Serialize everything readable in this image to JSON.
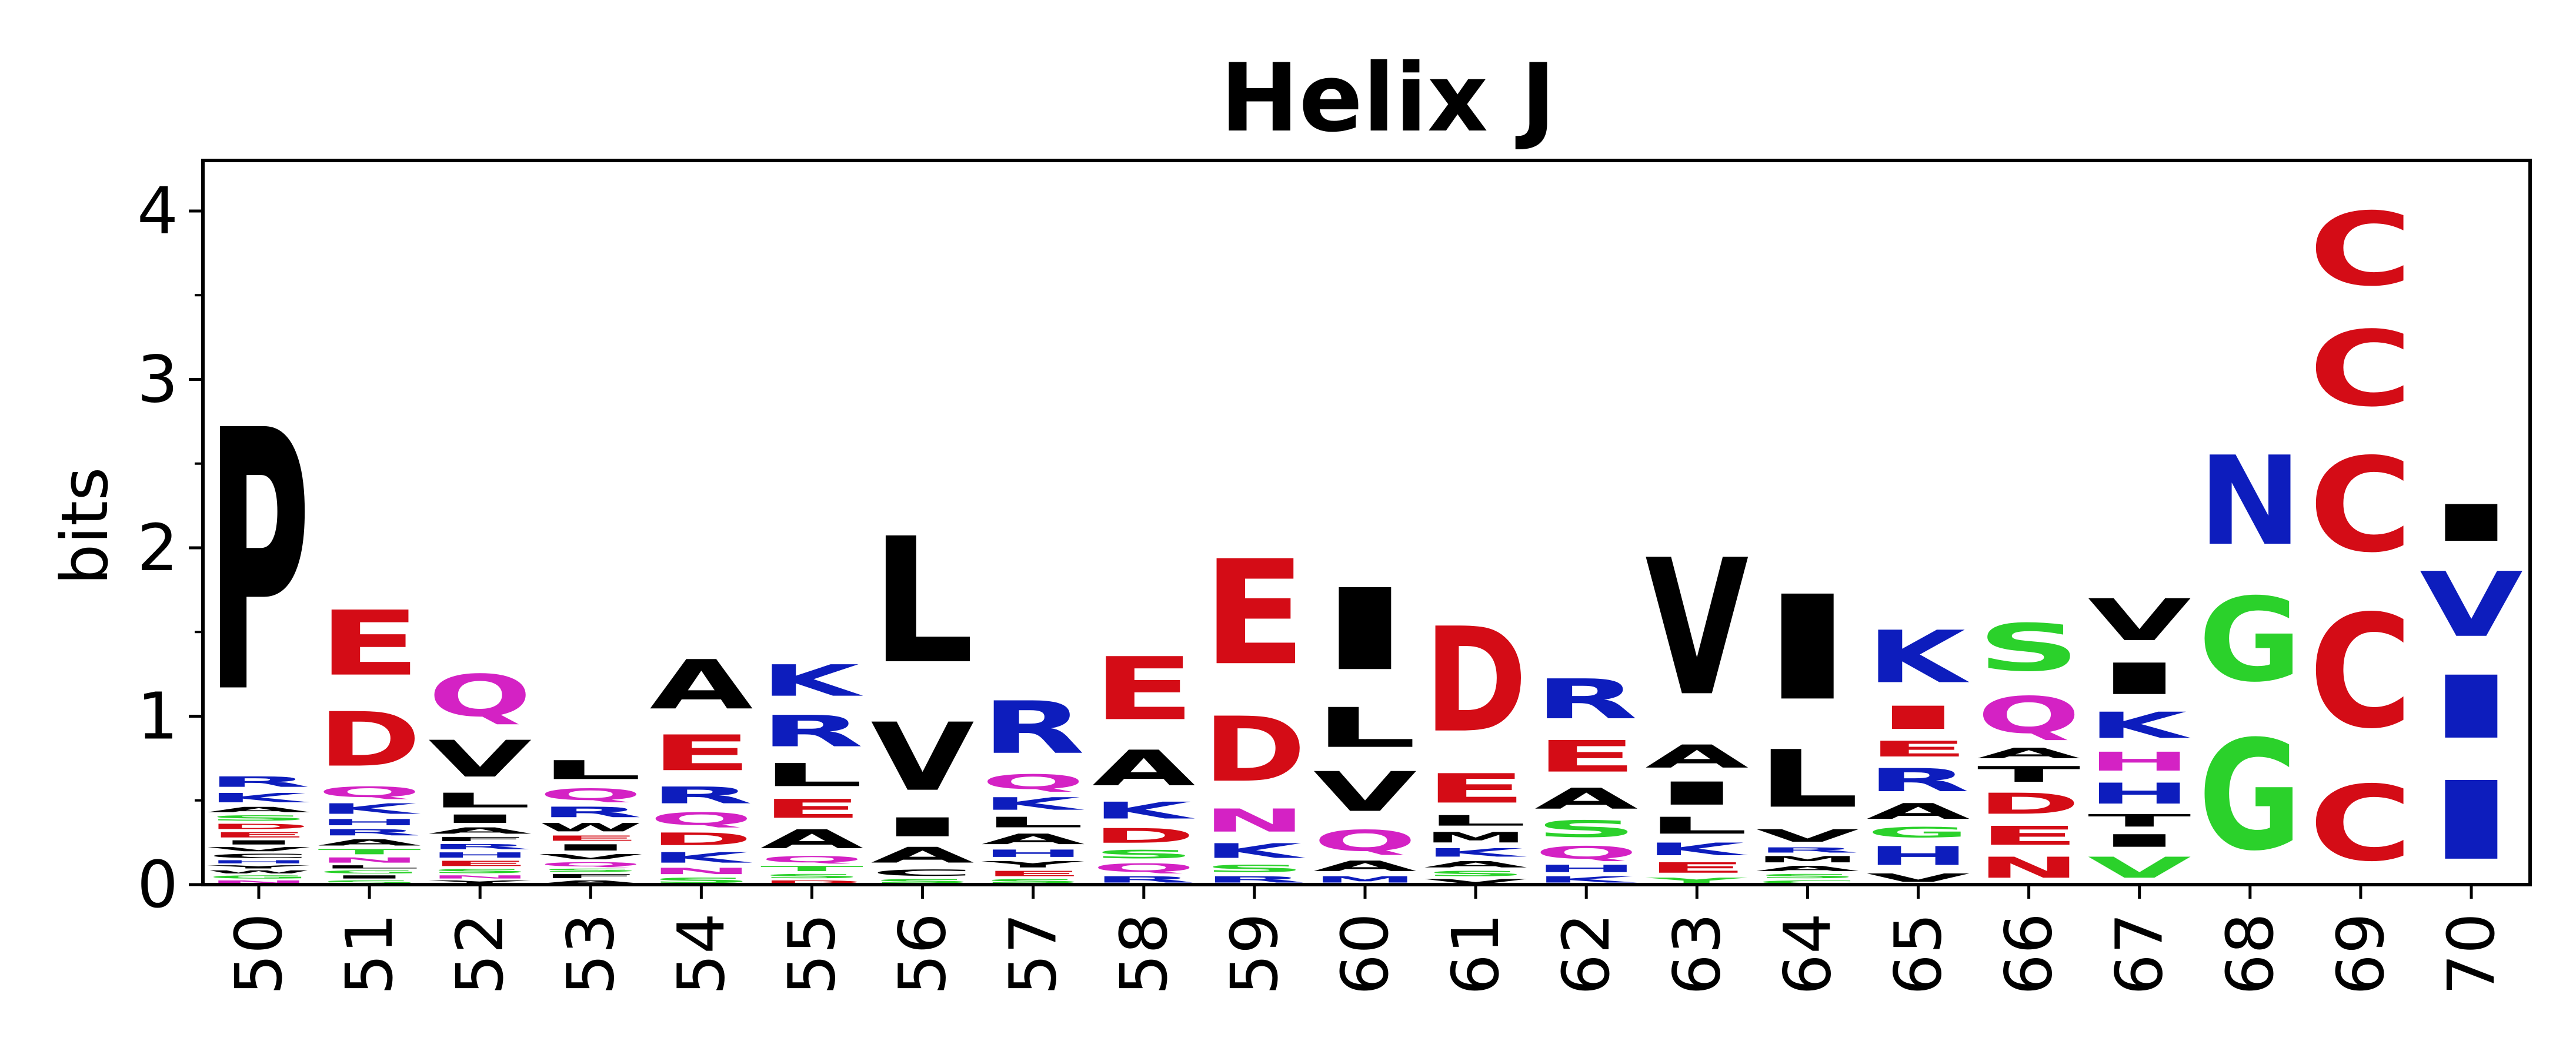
{
  "chart_data": {
    "type": "sequence-logo",
    "title": "Helix J",
    "xlabel": "",
    "ylabel": "bits",
    "ylim": [
      0,
      4.3
    ],
    "yticks": [
      0,
      1,
      2,
      3,
      4
    ],
    "y_minor_ticks": [
      0.5,
      1.5,
      2.5,
      3.5
    ],
    "grid": false,
    "legend": "none",
    "colors": {
      "black": "#000000",
      "red": "#d40c16",
      "blue": "#0d1dbd",
      "magenta": "#d422c4",
      "green": "#2bd12b"
    },
    "positions": [
      {
        "label": "50",
        "stack": [
          [
            "N",
            0.03,
            "magenta"
          ],
          [
            "G",
            0.03,
            "green"
          ],
          [
            "W",
            0.03,
            "black"
          ],
          [
            "Y",
            0.03,
            "black"
          ],
          [
            "H",
            0.03,
            "blue"
          ],
          [
            "C",
            0.04,
            "black"
          ],
          [
            "V",
            0.04,
            "black"
          ],
          [
            "I",
            0.04,
            "black"
          ],
          [
            "E",
            0.05,
            "red"
          ],
          [
            "D",
            0.05,
            "red"
          ],
          [
            "S",
            0.05,
            "green"
          ],
          [
            "A",
            0.05,
            "black"
          ],
          [
            "K",
            0.09,
            "blue"
          ],
          [
            "R",
            0.1,
            "blue"
          ],
          [
            "P",
            2.49,
            "black"
          ]
        ]
      },
      {
        "label": "51",
        "stack": [
          [
            "S",
            0.03,
            "green"
          ],
          [
            "I",
            0.03,
            "black"
          ],
          [
            "G",
            0.03,
            "green"
          ],
          [
            "L",
            0.03,
            "black"
          ],
          [
            "N",
            0.05,
            "magenta"
          ],
          [
            "T",
            0.05,
            "green"
          ],
          [
            "A",
            0.06,
            "black"
          ],
          [
            "R",
            0.06,
            "blue"
          ],
          [
            "H",
            0.06,
            "blue"
          ],
          [
            "K",
            0.1,
            "blue"
          ],
          [
            "Q",
            0.1,
            "magenta"
          ],
          [
            "D",
            0.52,
            "red"
          ],
          [
            "E",
            0.62,
            "red"
          ]
        ]
      },
      {
        "label": "52",
        "stack": [
          [
            "Y",
            0.03,
            "black"
          ],
          [
            "N",
            0.03,
            "magenta"
          ],
          [
            "S",
            0.04,
            "green"
          ],
          [
            "E",
            0.05,
            "red"
          ],
          [
            "H",
            0.05,
            "blue"
          ],
          [
            "R",
            0.05,
            "blue"
          ],
          [
            "F",
            0.04,
            "black"
          ],
          [
            "A",
            0.06,
            "black"
          ],
          [
            "I",
            0.08,
            "black"
          ],
          [
            "L",
            0.14,
            "black"
          ],
          [
            "V",
            0.35,
            "black"
          ],
          [
            "Q",
            0.4,
            "magenta"
          ]
        ]
      },
      {
        "label": "53",
        "stack": [
          [
            "A",
            0.03,
            "black"
          ],
          [
            "F",
            0.04,
            "black"
          ],
          [
            "S",
            0.03,
            "green"
          ],
          [
            "Q",
            0.04,
            "magenta"
          ],
          [
            "V",
            0.05,
            "black"
          ],
          [
            "I",
            0.06,
            "black"
          ],
          [
            "E",
            0.05,
            "red"
          ],
          [
            "W",
            0.08,
            "black"
          ],
          [
            "R",
            0.1,
            "blue"
          ],
          [
            "Q",
            0.11,
            "magenta"
          ],
          [
            "L",
            0.18,
            "black"
          ]
        ]
      },
      {
        "label": "54",
        "stack": [
          [
            "S",
            0.05,
            "green"
          ],
          [
            "N",
            0.06,
            "magenta"
          ],
          [
            "K",
            0.1,
            "blue"
          ],
          [
            "D",
            0.12,
            "red"
          ],
          [
            "Q",
            0.12,
            "magenta"
          ],
          [
            "R",
            0.16,
            "blue"
          ],
          [
            "E",
            0.34,
            "red"
          ],
          [
            "A",
            0.47,
            "black"
          ]
        ]
      },
      {
        "label": "55",
        "stack": [
          [
            "D",
            0.03,
            "red"
          ],
          [
            "S",
            0.04,
            "green"
          ],
          [
            "T",
            0.05,
            "green"
          ],
          [
            "Q",
            0.06,
            "magenta"
          ],
          [
            "A",
            0.18,
            "black"
          ],
          [
            "E",
            0.18,
            "red"
          ],
          [
            "L",
            0.22,
            "black"
          ],
          [
            "R",
            0.3,
            "blue"
          ],
          [
            "K",
            0.3,
            "blue"
          ]
        ]
      },
      {
        "label": "56",
        "stack": [
          [
            "S",
            0.04,
            "green"
          ],
          [
            "C",
            0.06,
            "black"
          ],
          [
            "A",
            0.15,
            "black"
          ],
          [
            "I",
            0.18,
            "black"
          ],
          [
            "V",
            0.65,
            "black"
          ],
          [
            "L",
            1.2,
            "black"
          ]
        ]
      },
      {
        "label": "57",
        "stack": [
          [
            "S",
            0.04,
            "green"
          ],
          [
            "E",
            0.05,
            "red"
          ],
          [
            "Y",
            0.06,
            "black"
          ],
          [
            "H",
            0.07,
            "blue"
          ],
          [
            "A",
            0.1,
            "black"
          ],
          [
            "L",
            0.1,
            "black"
          ],
          [
            "K",
            0.12,
            "blue"
          ],
          [
            "Q",
            0.14,
            "magenta"
          ],
          [
            "R",
            0.5,
            "blue"
          ]
        ]
      },
      {
        "label": "58",
        "stack": [
          [
            "R",
            0.06,
            "blue"
          ],
          [
            "Q",
            0.08,
            "magenta"
          ],
          [
            "S",
            0.08,
            "green"
          ],
          [
            "D",
            0.14,
            "red"
          ],
          [
            "K",
            0.16,
            "blue"
          ],
          [
            "A",
            0.34,
            "black"
          ],
          [
            "E",
            0.6,
            "red"
          ]
        ]
      },
      {
        "label": "59",
        "stack": [
          [
            "R",
            0.06,
            "blue"
          ],
          [
            "S",
            0.07,
            "green"
          ],
          [
            "K",
            0.14,
            "blue"
          ],
          [
            "N",
            0.22,
            "magenta"
          ],
          [
            "D",
            0.62,
            "red"
          ],
          [
            "E",
            1.0,
            "red"
          ]
        ]
      },
      {
        "label": "60",
        "stack": [
          [
            "M",
            0.06,
            "blue"
          ],
          [
            "A",
            0.1,
            "black"
          ],
          [
            "Q",
            0.2,
            "magenta"
          ],
          [
            "V",
            0.38,
            "black"
          ],
          [
            "L",
            0.38,
            "black"
          ],
          [
            "I",
            0.78,
            "black"
          ]
        ]
      },
      {
        "label": "61",
        "stack": [
          [
            "V",
            0.04,
            "black"
          ],
          [
            "S",
            0.05,
            "green"
          ],
          [
            "A",
            0.06,
            "black"
          ],
          [
            "K",
            0.08,
            "blue"
          ],
          [
            "M",
            0.1,
            "black"
          ],
          [
            "L",
            0.1,
            "black"
          ],
          [
            "E",
            0.28,
            "red"
          ],
          [
            "D",
            1.0,
            "red"
          ]
        ]
      },
      {
        "label": "62",
        "stack": [
          [
            "K",
            0.06,
            "blue"
          ],
          [
            "H",
            0.07,
            "blue"
          ],
          [
            "Q",
            0.12,
            "magenta"
          ],
          [
            "S",
            0.16,
            "green"
          ],
          [
            "A",
            0.2,
            "black"
          ],
          [
            "E",
            0.3,
            "red"
          ],
          [
            "R",
            0.38,
            "blue"
          ]
        ]
      },
      {
        "label": "63",
        "stack": [
          [
            "Y",
            0.05,
            "green"
          ],
          [
            "E",
            0.1,
            "red"
          ],
          [
            "K",
            0.12,
            "blue"
          ],
          [
            "L",
            0.16,
            "black"
          ],
          [
            "I",
            0.22,
            "black"
          ],
          [
            "A",
            0.22,
            "black"
          ],
          [
            "V",
            1.3,
            "black"
          ]
        ]
      },
      {
        "label": "64",
        "stack": [
          [
            "C",
            0.03,
            "green"
          ],
          [
            "S",
            0.04,
            "green"
          ],
          [
            "A",
            0.05,
            "black"
          ],
          [
            "M",
            0.06,
            "black"
          ],
          [
            "R",
            0.05,
            "blue"
          ],
          [
            "V",
            0.12,
            "black"
          ],
          [
            "L",
            0.55,
            "black"
          ],
          [
            "I",
            1.0,
            "black"
          ]
        ]
      },
      {
        "label": "65",
        "stack": [
          [
            "V",
            0.08,
            "black"
          ],
          [
            "H",
            0.18,
            "blue"
          ],
          [
            "G",
            0.1,
            "green"
          ],
          [
            "A",
            0.15,
            "black"
          ],
          [
            "R",
            0.22,
            "blue"
          ],
          [
            "E",
            0.15,
            "red"
          ],
          [
            "I",
            0.22,
            "red"
          ],
          [
            "K",
            0.5,
            "blue"
          ]
        ]
      },
      {
        "label": "66",
        "stack": [
          [
            "N",
            0.2,
            "red"
          ],
          [
            "E",
            0.18,
            "red"
          ],
          [
            "D",
            0.2,
            "red"
          ],
          [
            "T",
            0.15,
            "black"
          ],
          [
            "A",
            0.1,
            "black"
          ],
          [
            "Q",
            0.35,
            "magenta"
          ],
          [
            "S",
            0.45,
            "green"
          ]
        ]
      },
      {
        "label": "67",
        "stack": [
          [
            "V",
            0.2,
            "green"
          ],
          [
            "I",
            0.12,
            "black"
          ],
          [
            "T",
            0.12,
            "black"
          ],
          [
            "H",
            0.2,
            "blue"
          ],
          [
            "H",
            0.18,
            "magenta"
          ],
          [
            "K",
            0.25,
            "blue"
          ],
          [
            "I",
            0.3,
            "black"
          ],
          [
            "V",
            0.4,
            "black"
          ]
        ]
      },
      {
        "label": "68",
        "stack": [
          [
            "G",
            1.05,
            "green"
          ],
          [
            "G",
            0.8,
            "green"
          ],
          [
            "N",
            0.85,
            "blue"
          ]
        ]
      },
      {
        "label": "69",
        "stack": [
          [
            "C",
            0.72,
            "red"
          ],
          [
            "C",
            1.08,
            "red"
          ],
          [
            "C",
            0.9,
            "red"
          ],
          [
            "C",
            0.72,
            "red"
          ],
          [
            "C",
            0.7,
            "red"
          ]
        ]
      },
      {
        "label": "70",
        "stack": [
          [
            "I",
            0.75,
            "blue"
          ],
          [
            "I",
            0.6,
            "blue"
          ],
          [
            "V",
            0.62,
            "blue"
          ],
          [
            "I",
            0.35,
            "black"
          ]
        ]
      }
    ]
  }
}
